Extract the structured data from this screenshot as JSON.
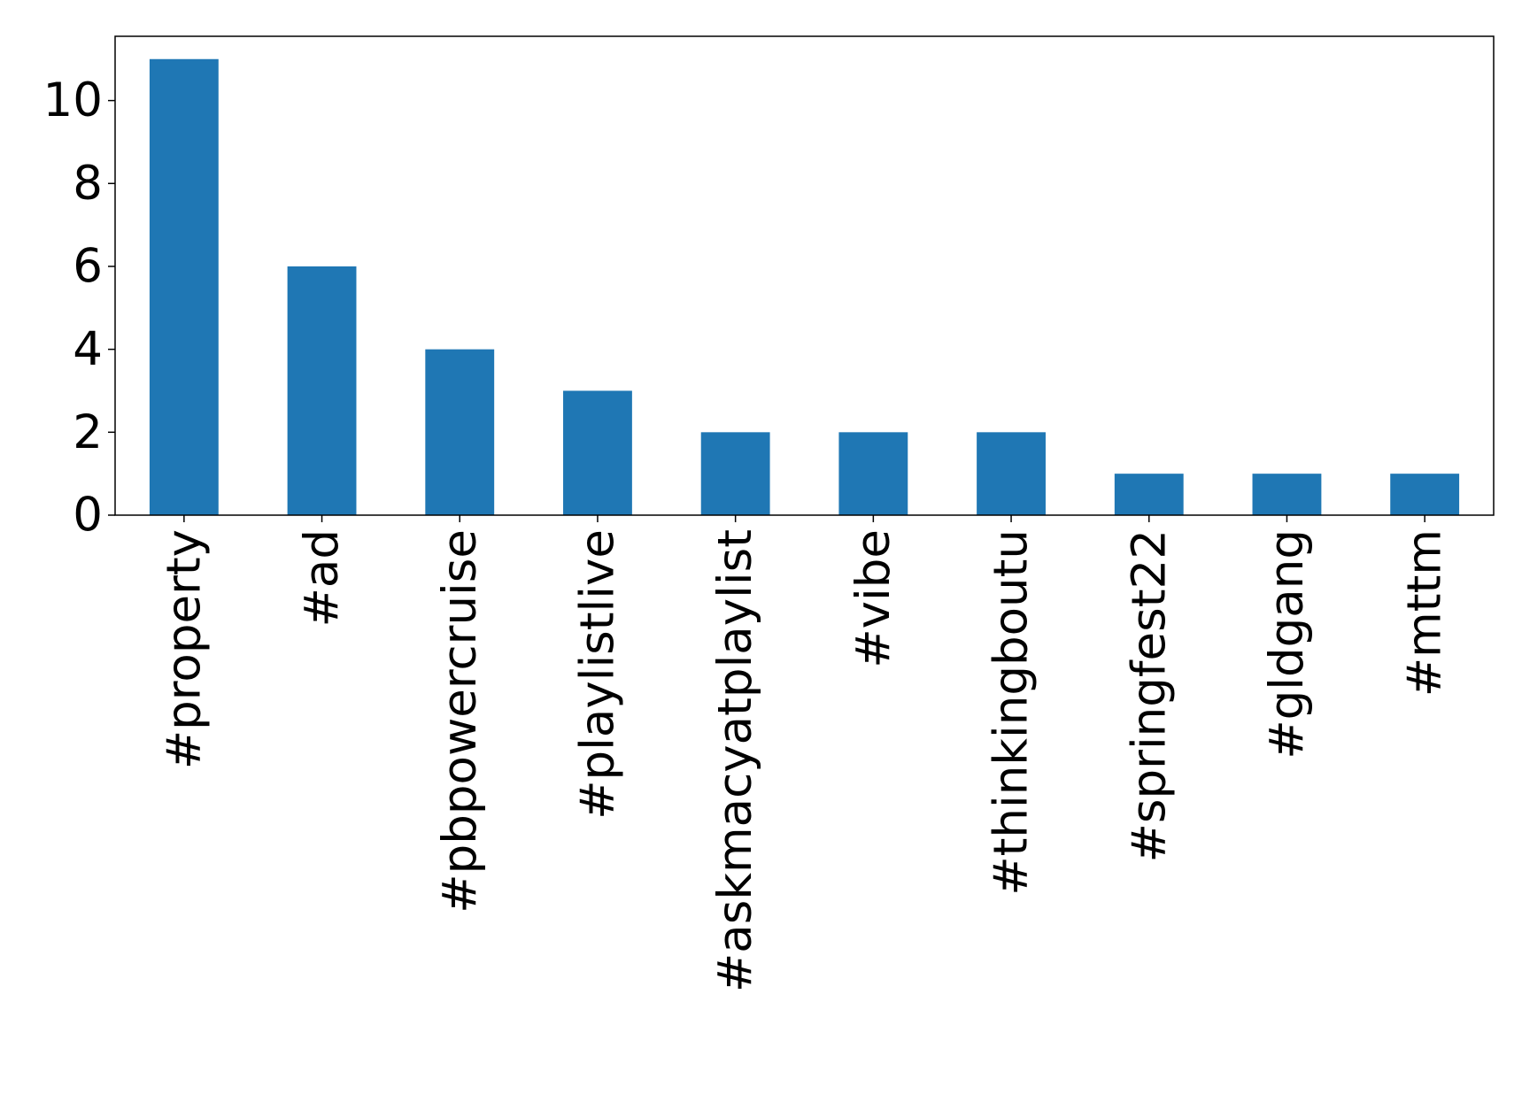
{
  "chart_data": {
    "type": "bar",
    "categories": [
      "#property",
      "#ad",
      "#pbpowercruise",
      "#playlistlive",
      "#askmacyatplaylist",
      "#vibe",
      "#thinkingboutu",
      "#springfest22",
      "#gldgang",
      "#mttm"
    ],
    "values": [
      11,
      6,
      4,
      3,
      2,
      2,
      2,
      1,
      1,
      1
    ],
    "color": "#1f77b4",
    "ylim": [
      0,
      11.55
    ],
    "yticks": [
      0,
      2,
      4,
      6,
      8,
      10
    ],
    "grid": false
  }
}
